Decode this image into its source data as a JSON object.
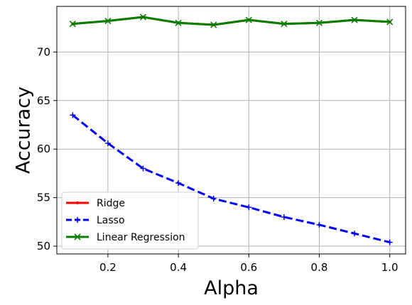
{
  "chart_data": {
    "type": "line",
    "title": "",
    "xlabel": "Alpha",
    "ylabel": "Accuracy",
    "x": [
      0.1,
      0.2,
      0.3,
      0.4,
      0.5,
      0.6,
      0.7,
      0.8,
      0.9,
      1.0
    ],
    "xlim": [
      0.055,
      1.045
    ],
    "ylim": [
      49.2,
      74.7
    ],
    "xticks": [
      0.2,
      0.4,
      0.6,
      0.8,
      1.0
    ],
    "xtick_labels": [
      "0.2",
      "0.4",
      "0.6",
      "0.8",
      "1.0"
    ],
    "yticks": [
      50,
      55,
      60,
      65,
      70
    ],
    "ytick_labels": [
      "50",
      "55",
      "60",
      "65",
      "70"
    ],
    "grid": true,
    "legend_position": "lower-left",
    "series": [
      {
        "name": "Ridge",
        "color": "#ff0000",
        "line_style": "solid",
        "marker": "point",
        "values": [
          72.9,
          73.2,
          73.6,
          73.0,
          72.8,
          73.3,
          72.9,
          73.0,
          73.3,
          73.1
        ]
      },
      {
        "name": "Lasso",
        "color": "#0000ff",
        "line_style": "dashed",
        "marker": "plus",
        "values": [
          63.5,
          60.6,
          58.0,
          56.5,
          54.9,
          54.0,
          53.0,
          52.2,
          51.3,
          50.4
        ]
      },
      {
        "name": "Linear Regression",
        "color": "#008000",
        "line_style": "solid",
        "marker": "x",
        "values": [
          72.9,
          73.2,
          73.6,
          73.0,
          72.8,
          73.3,
          72.9,
          73.0,
          73.3,
          73.1
        ]
      }
    ]
  }
}
